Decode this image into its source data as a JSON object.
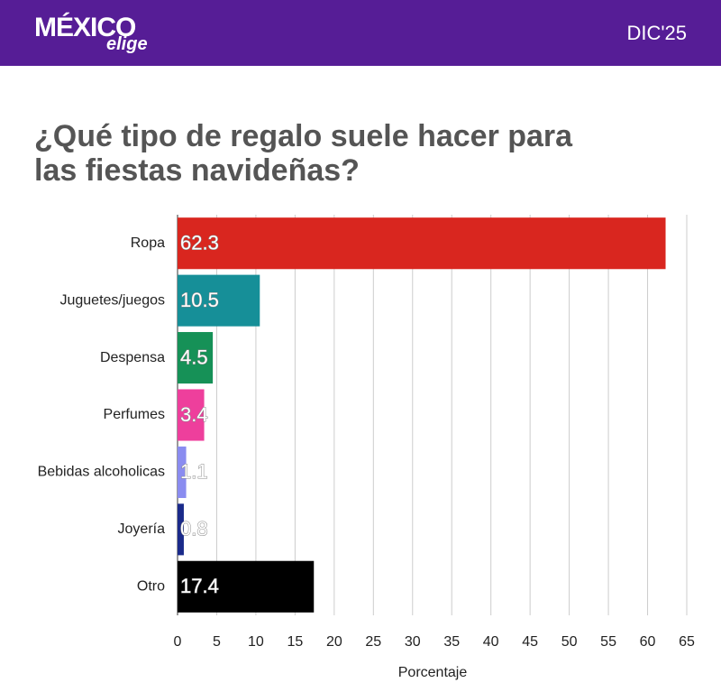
{
  "header": {
    "logo_main": "MÉXICO",
    "logo_sub": "elige",
    "date": "DIC'25"
  },
  "chart_data": {
    "type": "bar",
    "orientation": "horizontal",
    "title": "¿Qué tipo de regalo suele hacer para las fiestas navideñas?",
    "categories": [
      "Ropa",
      "Juguetes/juegos",
      "Despensa",
      "Perfumes",
      "Bebidas alcoholicas",
      "Joyería",
      "Otro"
    ],
    "values": [
      62.3,
      10.5,
      4.5,
      3.4,
      1.1,
      0.8,
      17.4
    ],
    "colors": [
      "#d9261f",
      "#168f98",
      "#169157",
      "#ee3f9c",
      "#8a8cf0",
      "#1a2a8a",
      "#000000"
    ],
    "xlim": [
      0,
      65
    ],
    "xticks": [
      0,
      5,
      10,
      15,
      20,
      25,
      30,
      35,
      40,
      45,
      50,
      55,
      60,
      65
    ],
    "xlabel": "Porcentaje",
    "grid": true
  }
}
